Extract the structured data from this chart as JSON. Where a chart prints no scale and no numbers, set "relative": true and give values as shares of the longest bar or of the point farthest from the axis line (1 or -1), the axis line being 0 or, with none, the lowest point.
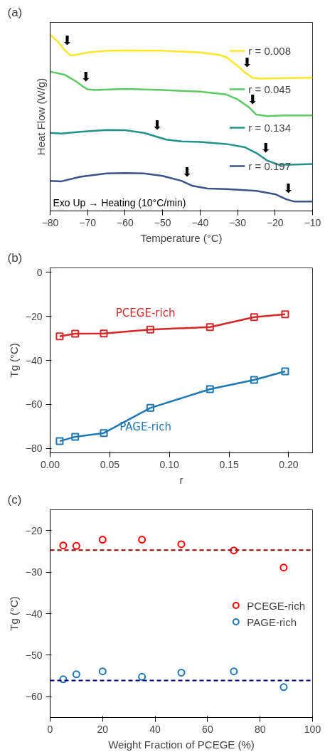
{
  "chart_data": [
    {
      "type": "line",
      "title": "(a)",
      "xlabel": "Temperature (°C)",
      "ylabel": "Heat Flow (W/g)",
      "relative": true,
      "legend": "right",
      "xlim": [
        -80,
        -10
      ],
      "xticks": [
        {
          "value": -80,
          "label": "−80"
        },
        {
          "value": -70,
          "label": "−70"
        },
        {
          "value": -60,
          "label": "−60"
        },
        {
          "value": -50,
          "label": "−50"
        },
        {
          "value": -40,
          "label": "−40"
        },
        {
          "value": -30,
          "label": "−30"
        },
        {
          "value": -20,
          "label": "−20"
        },
        {
          "value": -10,
          "label": "−10"
        }
      ],
      "series": [
        {
          "name": "r = 0.008",
          "color": "#fde725",
          "x": [
            -80,
            -78,
            -76,
            -74.5,
            -73,
            -70,
            -65,
            -60,
            -50,
            -40,
            -35,
            -33,
            -30,
            -28,
            -26,
            -24,
            -20,
            -10
          ],
          "values": [
            1.0,
            0.962,
            0.911,
            0.882,
            0.886,
            0.899,
            0.909,
            0.911,
            0.909,
            0.899,
            0.886,
            0.873,
            0.823,
            0.785,
            0.756,
            0.751,
            0.753,
            0.756
          ]
        },
        {
          "name": "r = 0.045",
          "color": "#5ec962",
          "x": [
            -80,
            -76,
            -73,
            -71,
            -70,
            -68,
            -60,
            -50,
            -40,
            -33,
            -30,
            -27,
            -25,
            -22,
            -18,
            -10
          ],
          "values": [
            0.791,
            0.772,
            0.734,
            0.703,
            0.69,
            0.686,
            0.692,
            0.686,
            0.677,
            0.661,
            0.633,
            0.589,
            0.547,
            0.538,
            0.542,
            0.542
          ]
        },
        {
          "name": "r = 0.134",
          "color": "#21918c",
          "x": [
            -80,
            -77,
            -72,
            -65,
            -60,
            -55,
            -52,
            -49,
            -45,
            -40,
            -33,
            -28,
            -25,
            -22,
            -19,
            -16,
            -10
          ],
          "values": [
            0.443,
            0.439,
            0.449,
            0.459,
            0.458,
            0.443,
            0.424,
            0.405,
            0.395,
            0.392,
            0.38,
            0.361,
            0.329,
            0.285,
            0.262,
            0.262,
            0.266
          ]
        },
        {
          "name": "r = 0.197",
          "color": "#3b528b",
          "x": [
            -80,
            -77,
            -72,
            -65,
            -60,
            -55,
            -50,
            -45,
            -42,
            -38,
            -33,
            -25,
            -20,
            -17,
            -15,
            -10
          ],
          "values": [
            0.171,
            0.168,
            0.194,
            0.213,
            0.215,
            0.213,
            0.199,
            0.171,
            0.142,
            0.127,
            0.124,
            0.114,
            0.095,
            0.066,
            0.054,
            0.054
          ]
        }
      ],
      "annotations": [
        {
          "text": "⬇",
          "x": -75.5,
          "y": 0.901
        },
        {
          "text": "⬇",
          "x": -27.5,
          "y": 0.778
        },
        {
          "text": "⬇",
          "x": -70.5,
          "y": 0.697
        },
        {
          "text": "⬇",
          "x": -26,
          "y": 0.568
        },
        {
          "text": "⬇",
          "x": -51.5,
          "y": 0.421
        },
        {
          "text": "⬇",
          "x": -22.5,
          "y": 0.292
        },
        {
          "text": "⬇",
          "x": -43.5,
          "y": 0.157
        },
        {
          "text": "⬇",
          "x": -16.5,
          "y": 0.063
        },
        "Exo Up → Heating (10°C/min)"
      ]
    },
    {
      "type": "line",
      "title": "(b)",
      "xlabel": "r",
      "ylabel": "Tg (°C)",
      "marker": "square",
      "xlim": [
        0,
        0.22
      ],
      "ylim": [
        -82,
        2
      ],
      "xticks": [
        {
          "value": 0,
          "label": "0.00"
        },
        {
          "value": 0.05,
          "label": "0.05"
        },
        {
          "value": 0.1,
          "label": "0.10"
        },
        {
          "value": 0.15,
          "label": "0.15"
        },
        {
          "value": 0.2,
          "label": "0.20"
        }
      ],
      "yticks": [
        0,
        {
          "value": -20,
          "label": "−20"
        },
        {
          "value": -40,
          "label": "−40"
        },
        {
          "value": -60,
          "label": "−60"
        },
        {
          "value": -80,
          "label": "−80"
        }
      ],
      "x": [
        0.008,
        0.021,
        0.045,
        0.084,
        0.134,
        0.171,
        0.197
      ],
      "series": [
        {
          "name": "PCEGE-rich",
          "color": "#d62728",
          "values": [
            -29.1,
            -27.9,
            -27.8,
            -26.0,
            -24.9,
            -20.4,
            -19.1
          ]
        },
        {
          "name": "PAGE-rich",
          "color": "#1f77b4",
          "values": [
            -76.7,
            -74.7,
            -73.0,
            -61.6,
            -53.1,
            -48.9,
            -45.0
          ]
        }
      ]
    },
    {
      "type": "scatter",
      "title": "(c)",
      "xlabel": "Weight Fraction of PCEGE (%)",
      "ylabel": "Tg (°C)",
      "marker": "circle",
      "legend": "right",
      "xlim": [
        0,
        100
      ],
      "ylim": [
        -65,
        -15
      ],
      "xticks": [
        0,
        20,
        40,
        60,
        80,
        100
      ],
      "yticks": [
        {
          "value": -20,
          "label": "−20"
        },
        {
          "value": -30,
          "label": "−30"
        },
        {
          "value": -40,
          "label": "−40"
        },
        {
          "value": -50,
          "label": "−50"
        },
        {
          "value": -60,
          "label": "−60"
        }
      ],
      "x": [
        5,
        10,
        20,
        35,
        50,
        70,
        89
      ],
      "series": [
        {
          "name": "PCEGE-rich",
          "color": "#ff0000",
          "values": [
            -23.6,
            -23.7,
            -22.2,
            -22.2,
            -23.3,
            -24.8,
            -28.9
          ]
        },
        {
          "name": "PAGE-rich",
          "color": "#1f77b4",
          "values": [
            -55.8,
            -54.6,
            -53.9,
            -55.2,
            -54.2,
            -53.9,
            -57.7
          ]
        }
      ],
      "ref_lines": [
        {
          "axis": "y",
          "value": -24.7,
          "color": "#8b0000",
          "line_style": "dashed"
        },
        {
          "axis": "y",
          "value": -56.1,
          "color": "#00008b",
          "line_style": "dashed"
        }
      ]
    }
  ]
}
